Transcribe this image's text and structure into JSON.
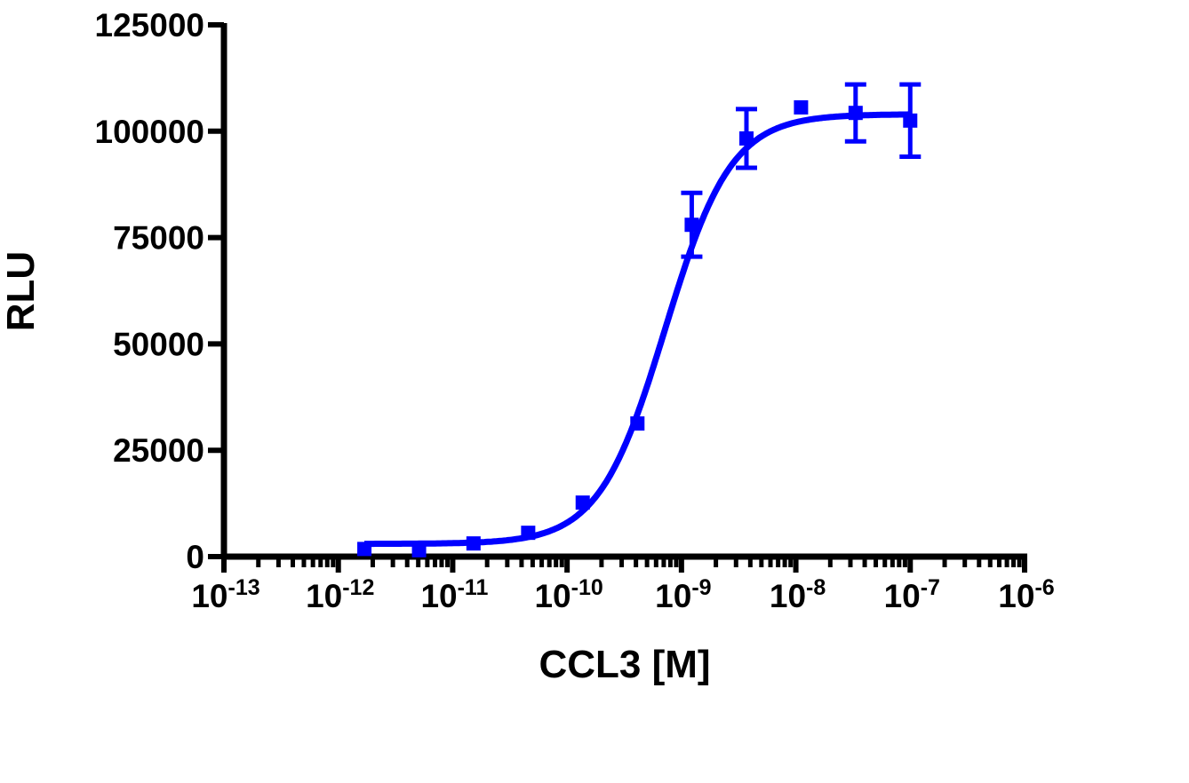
{
  "chart_data": {
    "type": "scatter",
    "xlabel": "CCL3 [M]",
    "ylabel": "RLU",
    "xscale": "log",
    "xlim": [
      1e-13,
      1e-06
    ],
    "ylim": [
      0,
      125000
    ],
    "xticks": [
      {
        "base": "10",
        "exp": "-13",
        "value": 1e-13
      },
      {
        "base": "10",
        "exp": "-12",
        "value": 1e-12
      },
      {
        "base": "10",
        "exp": "-11",
        "value": 1e-11
      },
      {
        "base": "10",
        "exp": "-10",
        "value": 1e-10
      },
      {
        "base": "10",
        "exp": "-9",
        "value": 1e-09
      },
      {
        "base": "10",
        "exp": "-8",
        "value": 1e-08
      },
      {
        "base": "10",
        "exp": "-7",
        "value": 1e-07
      },
      {
        "base": "10",
        "exp": "-6",
        "value": 1e-06
      }
    ],
    "yticks": [
      {
        "label": "0",
        "value": 0
      },
      {
        "label": "25000",
        "value": 25000
      },
      {
        "label": "50000",
        "value": 50000
      },
      {
        "label": "75000",
        "value": 75000
      },
      {
        "label": "100000",
        "value": 100000
      },
      {
        "label": "125000",
        "value": 125000
      }
    ],
    "grid": false,
    "color": "#0000ff",
    "points": [
      {
        "x": 1.69e-12,
        "y": 1800,
        "err": 0
      },
      {
        "x": 5.08e-12,
        "y": 1500,
        "err": 0
      },
      {
        "x": 1.52e-11,
        "y": 3100,
        "err": 0
      },
      {
        "x": 4.57e-11,
        "y": 5600,
        "err": 0
      },
      {
        "x": 1.37e-10,
        "y": 12700,
        "err": 0
      },
      {
        "x": 4.12e-10,
        "y": 31300,
        "err": 0
      },
      {
        "x": 1.23e-09,
        "y": 78000,
        "err": 7500
      },
      {
        "x": 3.7e-09,
        "y": 98300,
        "err": 6900
      },
      {
        "x": 1.11e-08,
        "y": 105600,
        "err": 0
      },
      {
        "x": 3.33e-08,
        "y": 104300,
        "err": 6700
      },
      {
        "x": 1e-07,
        "y": 102500,
        "err": 8500
      }
    ],
    "fit": {
      "model": "sigmoidal dose-response",
      "bottom": 3000,
      "top": 104000,
      "ec50": 7.2e-10,
      "hill": 1.5,
      "xrange": [
        1.69e-12,
        1e-07
      ]
    }
  }
}
